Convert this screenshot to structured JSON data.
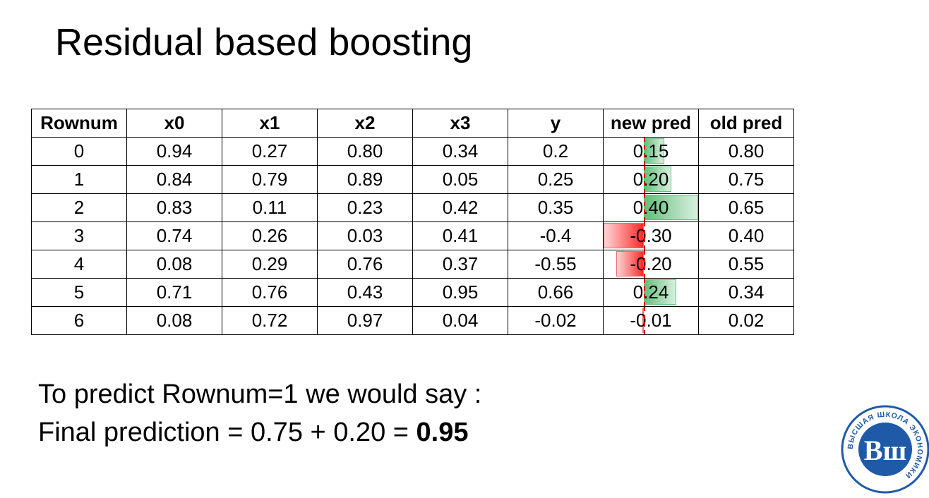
{
  "slide": {
    "title": "Residual based boosting"
  },
  "table": {
    "headers": [
      "Rownum",
      "x0",
      "x1",
      "x2",
      "x3",
      "y",
      "new pred",
      "old pred"
    ],
    "rows": [
      [
        "0",
        "0.94",
        "0.27",
        "0.80",
        "0.34",
        "0.2",
        "0.15",
        "0.80"
      ],
      [
        "1",
        "0.84",
        "0.79",
        "0.89",
        "0.05",
        "0.25",
        "0.20",
        "0.75"
      ],
      [
        "2",
        "0.83",
        "0.11",
        "0.23",
        "0.42",
        "0.35",
        "0.40",
        "0.65"
      ],
      [
        "3",
        "0.74",
        "0.26",
        "0.03",
        "0.41",
        "-0.4",
        "-0.30",
        "0.40"
      ],
      [
        "4",
        "0.08",
        "0.29",
        "0.76",
        "0.37",
        "-0.55",
        "-0.20",
        "0.55"
      ],
      [
        "5",
        "0.71",
        "0.76",
        "0.43",
        "0.95",
        "0.66",
        "0.24",
        "0.34"
      ],
      [
        "6",
        "0.08",
        "0.72",
        "0.97",
        "0.04",
        "-0.02",
        "-0.01",
        "0.02"
      ]
    ],
    "new_pred_values": [
      0.15,
      0.2,
      0.4,
      -0.3,
      -0.2,
      0.24,
      -0.01
    ],
    "data_bar_colors": {
      "positive": "#63be7b",
      "negative": "#ff2b2b",
      "axis": "#d00000"
    }
  },
  "explanation": {
    "line1": "To predict Rownum=1 we would say :",
    "line2_prefix": "Final prediction = 0.75 + 0.20 = ",
    "line2_result": "0.95"
  },
  "logo": {
    "monogram": "Вш",
    "ring_text": "ВЫСШАЯ ШКОЛА ЭКОНОМИКИ"
  }
}
